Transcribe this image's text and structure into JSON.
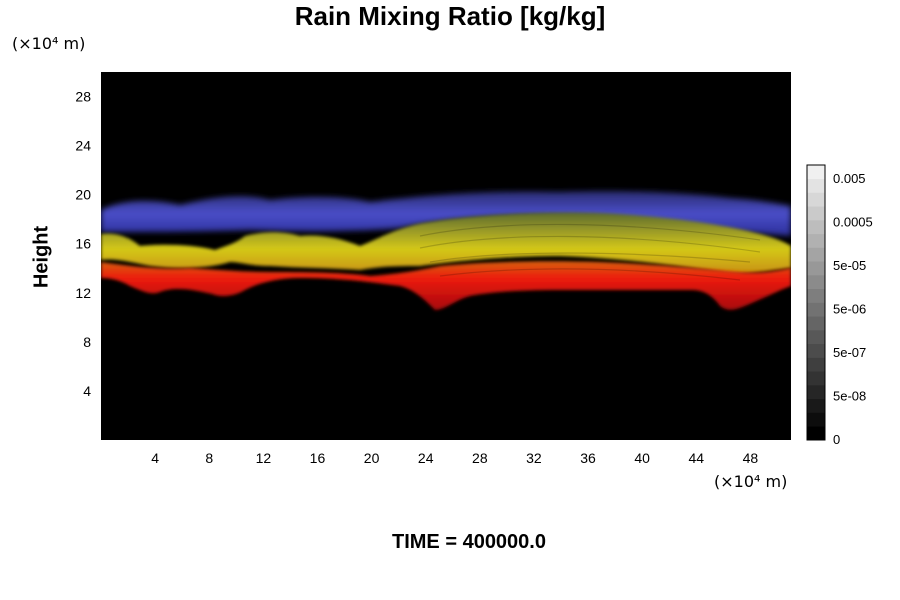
{
  "chart_data": {
    "type": "heatmap",
    "title": "Rain Mixing Ratio [kg/kg]",
    "ylabel": "Height",
    "xlabel": "",
    "y_unit": "(×10⁴ m)",
    "x_unit": "(×10⁴ m)",
    "footer": "TIME = 400000.0",
    "xlim": [
      0,
      51
    ],
    "ylim": [
      0,
      30
    ],
    "xticks": [
      "4",
      "8",
      "12",
      "16",
      "20",
      "24",
      "28",
      "32",
      "36",
      "40",
      "44",
      "48"
    ],
    "yticks": [
      "4",
      "8",
      "12",
      "16",
      "20",
      "24",
      "28"
    ],
    "colorbar": {
      "tick_labels": [
        "0.005",
        "0.0005",
        "5e-05",
        "5e-06",
        "5e-07",
        "5e-08",
        "0"
      ],
      "levels": 20,
      "colors": [
        "#000000",
        "#f0f0f0"
      ]
    },
    "background": "#000000",
    "bands": [
      {
        "layer": "upper",
        "color": "#3c40c0",
        "y_min": 17.5,
        "y_max": 20
      },
      {
        "layer": "middle",
        "color": "#c8c810",
        "y_min": 14,
        "y_max": 17.5
      },
      {
        "layer": "lower",
        "color": "#e81010",
        "y_min": 11,
        "y_max": 14
      }
    ]
  }
}
